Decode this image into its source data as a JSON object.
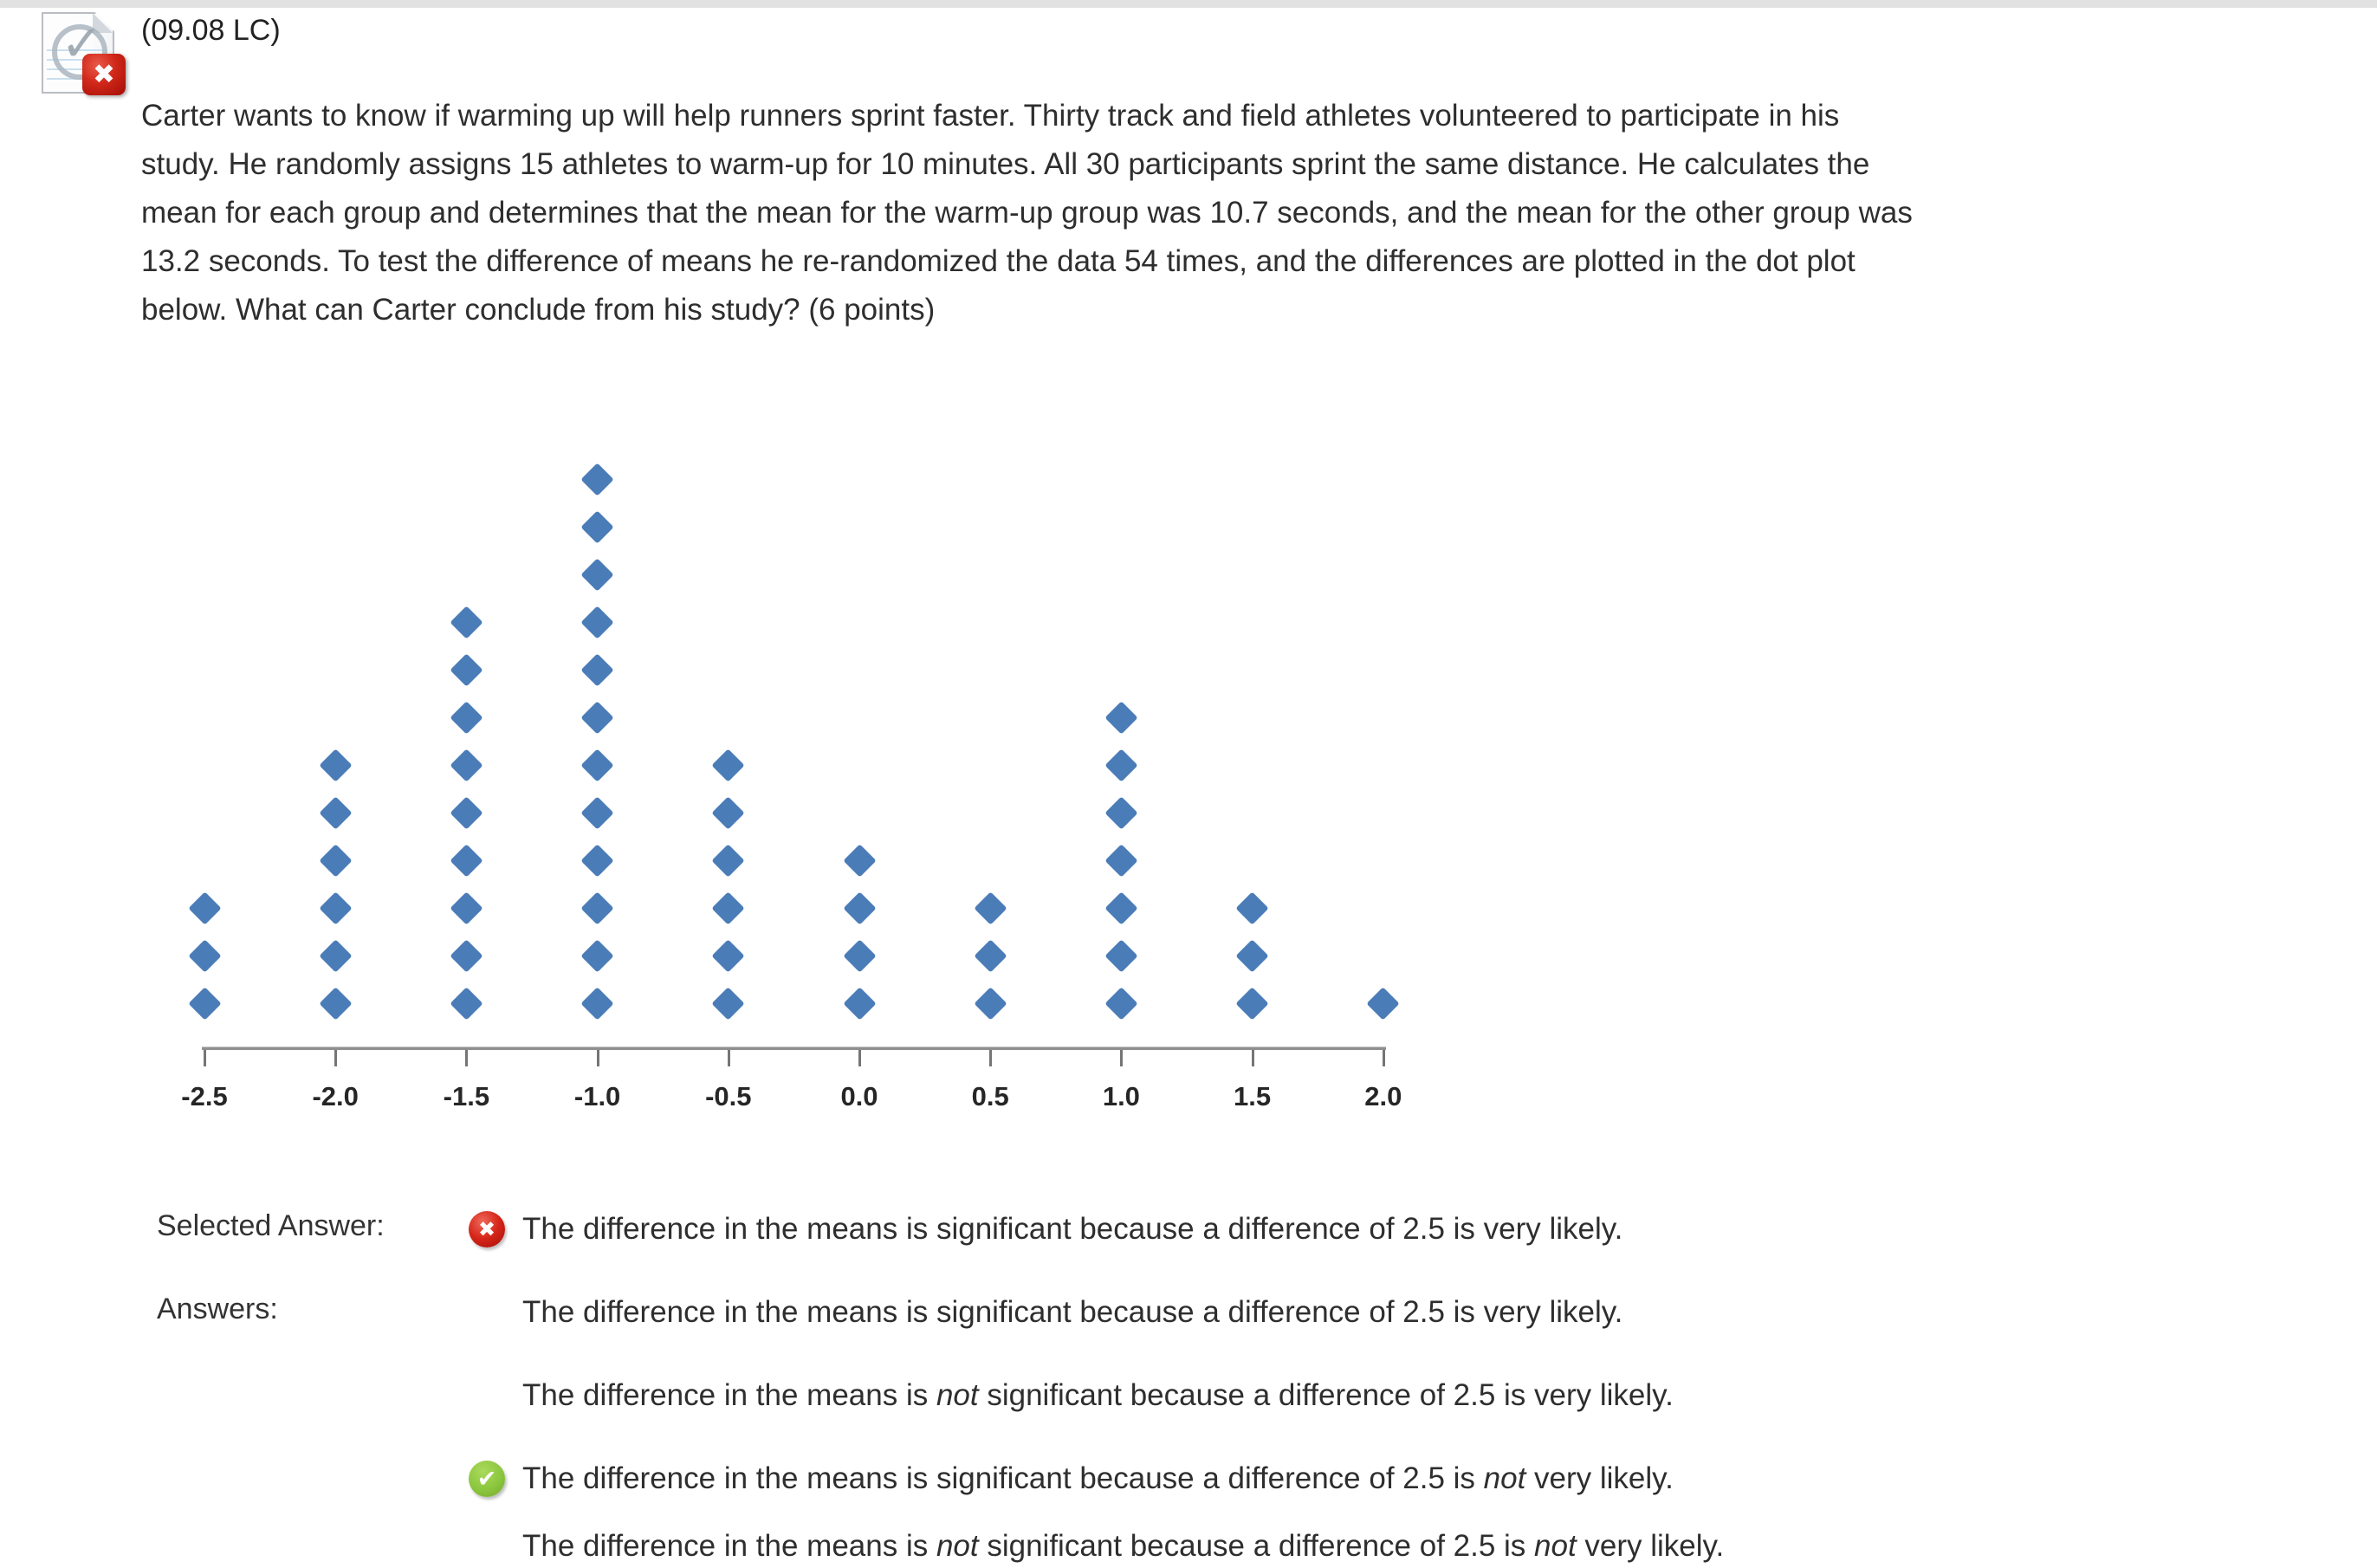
{
  "page": {
    "background": "#ffffff",
    "top_bar_color": "#e2e2e2"
  },
  "question": {
    "code": "(09.08 LC)",
    "status": "incorrect",
    "text": "Carter wants to know if warming up will help runners sprint faster. Thirty track and field athletes volunteered to participate in his\nstudy. He randomly assigns 15 athletes to warm-up for 10 minutes. All 30 participants sprint the same distance. He calculates the\nmean for each group and determines that the mean for the warm-up group was 10.7 seconds, and the mean for the other group was\n13.2 seconds. To test the difference of means he re-randomized the data 54 times, and the differences are plotted in the dot plot\nbelow. What can Carter conclude from his study? (6 points)"
  },
  "chart_data": {
    "type": "dotplot",
    "title": "",
    "xlabel": "",
    "ylabel": "",
    "categories": [
      -2.5,
      -2.0,
      -1.5,
      -1.0,
      -0.5,
      0.0,
      0.5,
      1.0,
      1.5,
      2.0
    ],
    "tick_labels": [
      "-2.5",
      "-2.0",
      "-1.5",
      "-1.0",
      "-0.5",
      "0.0",
      "0.5",
      "1.0",
      "1.5",
      "2.0"
    ],
    "values": [
      3,
      6,
      9,
      12,
      6,
      4,
      3,
      7,
      3,
      1
    ],
    "total_dots": 54,
    "marker": "diamond",
    "marker_color": "#4a7cb8",
    "axis_color": "#8f8f8f",
    "xlim": [
      -2.5,
      2.0
    ],
    "grid": false,
    "legend": false
  },
  "icons": {
    "document_check_glyph": "✓",
    "incorrect_glyph": "✖",
    "correct_glyph": "✔",
    "incorrect_color": "#c42015",
    "correct_color": "#8cc63e"
  },
  "answers_section": {
    "selected_label": "Selected Answer:",
    "answers_label": "Answers:",
    "selected_status": "incorrect",
    "selected_answer_segments": [
      {
        "text": "The difference in the means is significant because a difference of 2.5 is very likely.",
        "italic": false
      }
    ],
    "options": [
      {
        "correct": false,
        "segments": [
          {
            "text": "The difference in the means is significant because a difference of 2.5 is very likely.",
            "italic": false
          }
        ]
      },
      {
        "correct": false,
        "segments": [
          {
            "text": "The difference in the means is ",
            "italic": false
          },
          {
            "text": "not",
            "italic": true
          },
          {
            "text": " significant because a difference of 2.5 is very likely.",
            "italic": false
          }
        ]
      },
      {
        "correct": true,
        "segments": [
          {
            "text": "The difference in the means is significant because a difference of 2.5 is ",
            "italic": false
          },
          {
            "text": "not",
            "italic": true
          },
          {
            "text": " very likely.",
            "italic": false
          }
        ]
      },
      {
        "correct": false,
        "segments": [
          {
            "text": "The difference in the means is ",
            "italic": false
          },
          {
            "text": "not",
            "italic": true
          },
          {
            "text": " significant because a difference of 2.5 is ",
            "italic": false
          },
          {
            "text": "not",
            "italic": true
          },
          {
            "text": " very likely.",
            "italic": false
          }
        ]
      }
    ]
  }
}
